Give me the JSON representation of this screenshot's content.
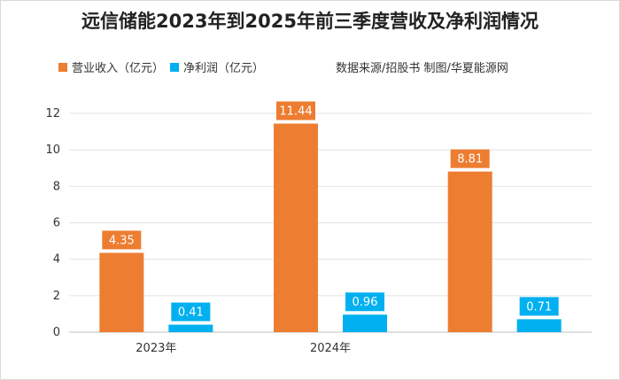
{
  "chart_data": {
    "type": "bar",
    "title": "远信储能2023年到2025年前三季度营收及净利润情况",
    "categories": [
      "2023年",
      "2024年",
      ""
    ],
    "series": [
      {
        "name": "营业收入（亿元）",
        "color": "#ed7d31",
        "values": [
          4.35,
          11.44,
          8.81
        ]
      },
      {
        "name": "净利润（亿元）",
        "color": "#00b0f0",
        "values": [
          0.41,
          0.96,
          0.71
        ]
      }
    ],
    "y_ticks": [
      "0",
      "2",
      "4",
      "6",
      "8",
      "10",
      "12"
    ],
    "ylim": [
      0,
      12
    ],
    "grid": true,
    "legend_position": "top-left"
  },
  "source_note": "数据来源/招股书  制图/华夏能源网"
}
